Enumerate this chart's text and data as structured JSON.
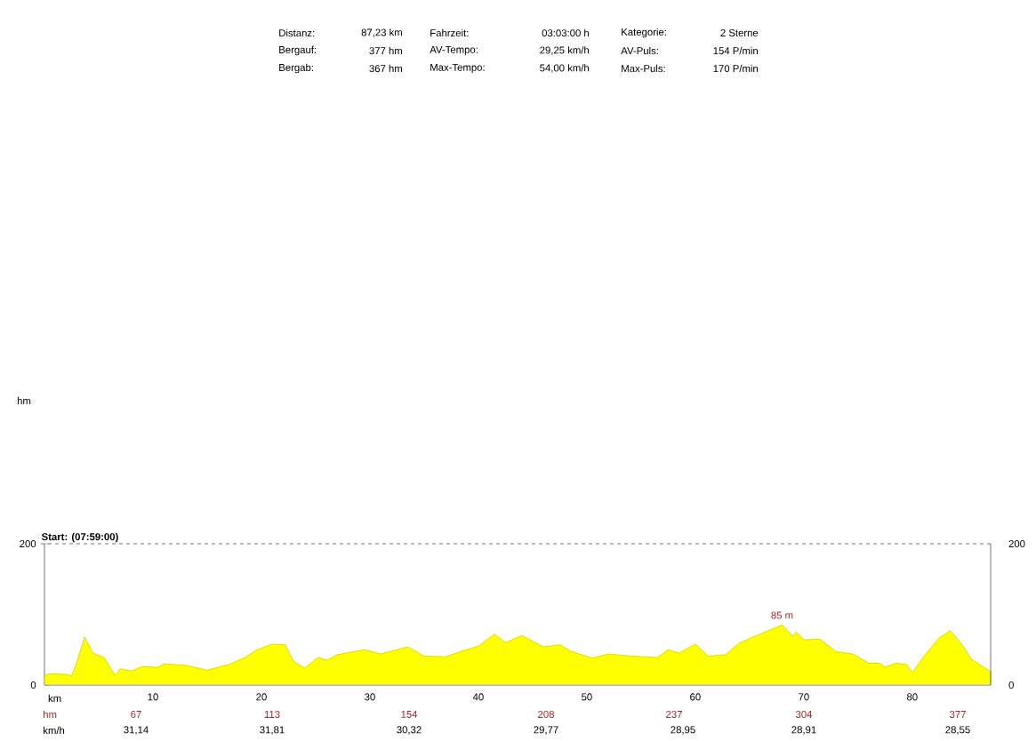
{
  "chart_data": {
    "type": "area",
    "xlabel": "km",
    "x": [
      0,
      0.5,
      2,
      2.5,
      3,
      3.7,
      4.5,
      5.5,
      6.5,
      7,
      8,
      9,
      10.5,
      11,
      13,
      15,
      17,
      18.5,
      19.5,
      21,
      22.2,
      23,
      24,
      25.2,
      26,
      27,
      29.5,
      31,
      33.5,
      35,
      37,
      38.5,
      40,
      41.5,
      42.5,
      44,
      46,
      47.5,
      48.5,
      50.5,
      52,
      54,
      56.5,
      57.5,
      58.5,
      60,
      61.2,
      62.8,
      64,
      65.5,
      67.5,
      68,
      69,
      69.3,
      70,
      71.5,
      73,
      74.5,
      76,
      77,
      77.5,
      78.5,
      79.5,
      80,
      81.2,
      82.5,
      83.5,
      84.5,
      85.5,
      87.23
    ],
    "values": [
      13,
      16,
      15,
      13,
      33,
      68,
      45,
      39,
      14,
      23,
      20,
      26,
      25,
      30,
      28,
      21,
      29,
      39,
      49,
      58,
      57,
      33,
      24,
      39,
      35,
      43,
      50,
      44,
      54,
      41,
      40,
      48,
      55,
      72,
      60,
      70,
      54,
      57,
      48,
      38,
      44,
      41,
      39,
      50,
      45,
      58,
      41,
      43,
      59,
      69,
      82,
      85,
      69,
      75,
      64,
      65,
      47,
      44,
      31,
      31,
      25,
      31,
      29,
      18,
      43,
      67,
      77,
      59,
      36,
      19
    ],
    "color": "#ffff00",
    "xlim": [
      0,
      87.23
    ],
    "xticks": [
      10,
      20,
      30,
      40,
      50,
      60,
      70,
      80
    ],
    "ylim": [
      0,
      200
    ],
    "yticks": [
      0,
      200
    ],
    "y2lim": [
      0,
      200
    ],
    "y2ticks": [
      0,
      200
    ],
    "annotations": [
      "Distanz:",
      "87,23 km",
      "Fahrzeit:",
      "03:03:00 h",
      "Kategorie:",
      "2 Sterne",
      "Bergauf:",
      "377 hm",
      "AV-Tempo:",
      "29,25 km/h",
      "AV-Puls:",
      "154 P/min",
      "Bergab:",
      "367 hm",
      "Max-Tempo:",
      "54,00 km/h",
      "Max-Puls:",
      "170 P/min",
      "Start: (07:59:00)",
      {
        "text": "85 m",
        "x": 68,
        "y": 85
      },
      "hm",
      "67",
      "113",
      "154",
      "208",
      "237",
      "304",
      "377",
      "km/h",
      "31,14",
      "31,81",
      "30,32",
      "29,77",
      "28,95",
      "28,91",
      "28,55",
      "hm"
    ]
  }
}
